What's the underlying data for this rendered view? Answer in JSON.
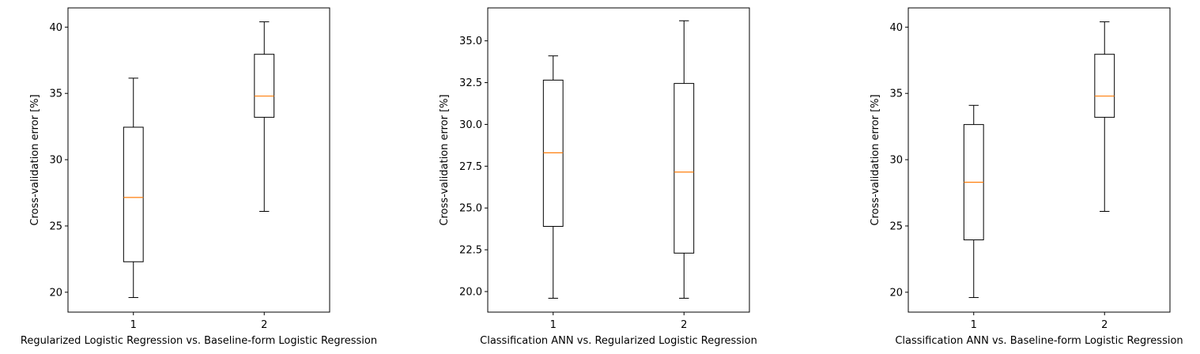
{
  "chart_data": [
    {
      "type": "boxplot",
      "xlabel": "Regularized Logistic Regression vs. Baseline-form Logistic Regression",
      "ylabel": "Cross-validation error [%]",
      "categories": [
        "1",
        "2"
      ],
      "ylim": [
        18.5,
        41.45
      ],
      "yticks": [
        20,
        25,
        30,
        35,
        40
      ],
      "ytick_labels": [
        "20",
        "25",
        "30",
        "35",
        "40"
      ],
      "boxes": [
        {
          "whislo": 19.6,
          "q1": 22.3,
          "med": 27.15,
          "q3": 32.45,
          "whishi": 36.15
        },
        {
          "whislo": 26.1,
          "q1": 33.2,
          "med": 34.8,
          "q3": 37.95,
          "whishi": 40.4
        }
      ],
      "colors": {
        "box": "#000000",
        "median": "#ff7f0e"
      },
      "grid": false
    },
    {
      "type": "boxplot",
      "xlabel": "Classification ANN vs. Regularized Logistic Regression",
      "ylabel": "Cross-validation error [%]",
      "categories": [
        "1",
        "2"
      ],
      "ylim": [
        18.77,
        36.97
      ],
      "yticks": [
        20.0,
        22.5,
        25.0,
        27.5,
        30.0,
        32.5,
        35.0
      ],
      "ytick_labels": [
        "20.0",
        "22.5",
        "25.0",
        "27.5",
        "30.0",
        "32.5",
        "35.0"
      ],
      "boxes": [
        {
          "whislo": 19.6,
          "q1": 23.9,
          "med": 28.3,
          "q3": 32.65,
          "whishi": 34.1
        },
        {
          "whislo": 19.6,
          "q1": 22.3,
          "med": 27.15,
          "q3": 32.45,
          "whishi": 36.2
        }
      ],
      "colors": {
        "box": "#000000",
        "median": "#ff7f0e"
      },
      "grid": false
    },
    {
      "type": "boxplot",
      "xlabel": "Classification ANN vs. Baseline-form Logistic Regression",
      "ylabel": "Cross-validation error [%]",
      "categories": [
        "1",
        "2"
      ],
      "ylim": [
        18.5,
        41.45
      ],
      "yticks": [
        20,
        25,
        30,
        35,
        40
      ],
      "ytick_labels": [
        "20",
        "25",
        "30",
        "35",
        "40"
      ],
      "boxes": [
        {
          "whislo": 19.6,
          "q1": 23.95,
          "med": 28.3,
          "q3": 32.65,
          "whishi": 34.1
        },
        {
          "whislo": 26.1,
          "q1": 33.2,
          "med": 34.8,
          "q3": 37.95,
          "whishi": 40.4
        }
      ],
      "colors": {
        "box": "#000000",
        "median": "#ff7f0e"
      },
      "grid": false
    }
  ]
}
